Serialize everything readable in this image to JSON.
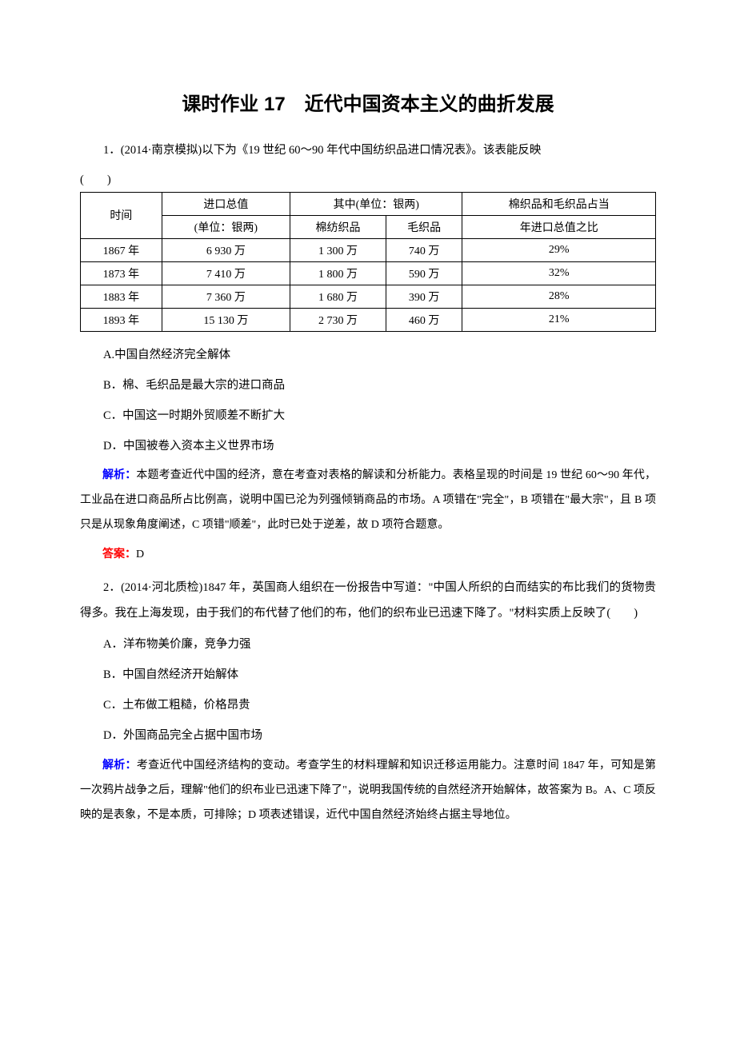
{
  "title": "课时作业 17　近代中国资本主义的曲折发展",
  "q1": {
    "stem": "1．(2014·南京模拟)以下为《19 世纪 60～90 年代中国纺织品进口情况表》。该表能反映",
    "paren": "(　　)",
    "table": {
      "header": {
        "time": "时间",
        "total_label_line1": "进口总值",
        "total_label_line2": "(单位：银两)",
        "subhead": "其中(单位：银两)",
        "cotton": "棉纺织品",
        "wool": "毛织品",
        "ratio_line1": "棉织品和毛织品占当",
        "ratio_line2": "年进口总值之比"
      },
      "rows": [
        {
          "time": "1867 年",
          "total": "6 930 万",
          "cotton": "1 300 万",
          "wool": "740 万",
          "ratio": "29%"
        },
        {
          "time": "1873 年",
          "total": "7 410 万",
          "cotton": "1 800 万",
          "wool": "590 万",
          "ratio": "32%"
        },
        {
          "time": "1883 年",
          "total": "7 360 万",
          "cotton": "1 680 万",
          "wool": "390 万",
          "ratio": "28%"
        },
        {
          "time": "1893 年",
          "total": "15 130 万",
          "cotton": "2 730 万",
          "wool": "460 万",
          "ratio": "21%"
        }
      ]
    },
    "options": {
      "A": "A.中国自然经济完全解体",
      "B": "B．棉、毛织品是最大宗的进口商品",
      "C": "C．中国这一时期外贸顺差不断扩大",
      "D": "D．中国被卷入资本主义世界市场"
    },
    "analysis_label": "解析：",
    "analysis_text": "本题考查近代中国的经济，意在考查对表格的解读和分析能力。表格呈现的时间是 19 世纪 60～90 年代，工业品在进口商品所占比例高，说明中国已沦为列强倾销商品的市场。A 项错在\"完全\"，B 项错在\"最大宗\"，且 B 项只是从现象角度阐述，C 项错\"顺差\"，此时已处于逆差，故 D 项符合题意。",
    "answer_label": "答案：",
    "answer": "D"
  },
  "q2": {
    "stem": "2．(2014·河北质检)1847 年，英国商人组织在一份报告中写道：\"中国人所织的白而结实的布比我们的货物贵得多。我在上海发现，由于我们的布代替了他们的布，他们的织布业已迅速下降了。\"材料实质上反映了(　　)",
    "options": {
      "A": "A．洋布物美价廉，竞争力强",
      "B": "B．中国自然经济开始解体",
      "C": "C．土布做工粗糙，价格昂贵",
      "D": "D．外国商品完全占据中国市场"
    },
    "analysis_label": "解析：",
    "analysis_text": "考查近代中国经济结构的变动。考查学生的材料理解和知识迁移运用能力。注意时间 1847 年，可知是第一次鸦片战争之后，理解\"他们的织布业已迅速下降了\"，说明我国传统的自然经济开始解体，故答案为 B。A、C 项反映的是表象，不是本质，可排除；D 项表述错误，近代中国自然经济始终占据主导地位。"
  },
  "colors": {
    "text": "#000000",
    "analysis_label": "#0000ff",
    "answer_label": "#ff0000",
    "background": "#ffffff",
    "table_border": "#000000"
  },
  "typography": {
    "title_fontsize": 24,
    "body_fontsize": 14.5,
    "table_fontsize": 14,
    "analysis_fontsize": 14,
    "line_height": 2.2,
    "body_font": "SimSun",
    "title_font": "SimHei",
    "analysis_font": "KaiTi"
  }
}
